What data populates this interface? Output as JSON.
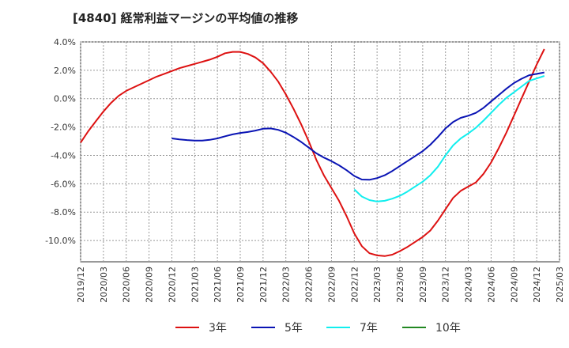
{
  "chart_data": {
    "type": "line",
    "title": "[4840]  経常利益マージンの平均値の推移",
    "xlabel": "",
    "ylabel": "",
    "x_range": [
      "2019/12",
      "2025/03"
    ],
    "ylim": [
      -11.5,
      4.0
    ],
    "y_ticks": [
      4.0,
      2.0,
      0.0,
      -2.0,
      -4.0,
      -6.0,
      -8.0,
      -10.0
    ],
    "y_tick_labels": [
      "4.0%",
      "2.0%",
      "0.0%",
      "-2.0%",
      "-4.0%",
      "-6.0%",
      "-8.0%",
      "-10.0%"
    ],
    "x_tick_labels": [
      "2019/12",
      "2020/03",
      "2020/06",
      "2020/09",
      "2020/12",
      "2021/03",
      "2021/06",
      "2021/09",
      "2021/12",
      "2022/03",
      "2022/06",
      "2022/09",
      "2022/12",
      "2023/03",
      "2023/06",
      "2023/09",
      "2023/12",
      "2024/03",
      "2024/06",
      "2024/09",
      "2024/12",
      "2025/03"
    ],
    "grid": true,
    "legend_position": "bottom",
    "series": [
      {
        "name": "3年",
        "color": "#dd1111",
        "points": [
          [
            "2019/12",
            -3.1
          ],
          [
            "2020/01",
            -2.3
          ],
          [
            "2020/02",
            -1.6
          ],
          [
            "2020/03",
            -0.9
          ],
          [
            "2020/04",
            -0.3
          ],
          [
            "2020/05",
            0.2
          ],
          [
            "2020/06",
            0.55
          ],
          [
            "2020/07",
            0.8
          ],
          [
            "2020/08",
            1.05
          ],
          [
            "2020/09",
            1.3
          ],
          [
            "2020/10",
            1.55
          ],
          [
            "2020/11",
            1.75
          ],
          [
            "2020/12",
            1.95
          ],
          [
            "2021/01",
            2.15
          ],
          [
            "2021/02",
            2.3
          ],
          [
            "2021/03",
            2.45
          ],
          [
            "2021/04",
            2.6
          ],
          [
            "2021/05",
            2.75
          ],
          [
            "2021/06",
            2.95
          ],
          [
            "2021/07",
            3.2
          ],
          [
            "2021/08",
            3.3
          ],
          [
            "2021/09",
            3.3
          ],
          [
            "2021/10",
            3.15
          ],
          [
            "2021/11",
            2.9
          ],
          [
            "2021/12",
            2.5
          ],
          [
            "2022/01",
            1.9
          ],
          [
            "2022/02",
            1.2
          ],
          [
            "2022/03",
            0.3
          ],
          [
            "2022/04",
            -0.7
          ],
          [
            "2022/05",
            -1.8
          ],
          [
            "2022/06",
            -3.0
          ],
          [
            "2022/07",
            -4.3
          ],
          [
            "2022/08",
            -5.4
          ],
          [
            "2022/09",
            -6.3
          ],
          [
            "2022/10",
            -7.2
          ],
          [
            "2022/11",
            -8.3
          ],
          [
            "2022/12",
            -9.5
          ],
          [
            "2023/01",
            -10.4
          ],
          [
            "2023/02",
            -10.9
          ],
          [
            "2023/03",
            -11.05
          ],
          [
            "2023/04",
            -11.1
          ],
          [
            "2023/05",
            -11.0
          ],
          [
            "2023/06",
            -10.75
          ],
          [
            "2023/07",
            -10.45
          ],
          [
            "2023/08",
            -10.1
          ],
          [
            "2023/09",
            -9.75
          ],
          [
            "2023/10",
            -9.3
          ],
          [
            "2023/11",
            -8.6
          ],
          [
            "2023/12",
            -7.8
          ],
          [
            "2024/01",
            -7.0
          ],
          [
            "2024/02",
            -6.5
          ],
          [
            "2024/03",
            -6.2
          ],
          [
            "2024/04",
            -5.9
          ],
          [
            "2024/05",
            -5.3
          ],
          [
            "2024/06",
            -4.5
          ],
          [
            "2024/07",
            -3.5
          ],
          [
            "2024/08",
            -2.4
          ],
          [
            "2024/09",
            -1.2
          ],
          [
            "2024/10",
            0.0
          ],
          [
            "2024/11",
            1.2
          ],
          [
            "2024/12",
            2.4
          ],
          [
            "2025/01",
            3.5
          ]
        ]
      },
      {
        "name": "5年",
        "color": "#0a14b4",
        "points": [
          [
            "2020/12",
            -2.8
          ],
          [
            "2021/01",
            -2.87
          ],
          [
            "2021/02",
            -2.92
          ],
          [
            "2021/03",
            -2.95
          ],
          [
            "2021/04",
            -2.95
          ],
          [
            "2021/05",
            -2.9
          ],
          [
            "2021/06",
            -2.8
          ],
          [
            "2021/07",
            -2.65
          ],
          [
            "2021/08",
            -2.52
          ],
          [
            "2021/09",
            -2.42
          ],
          [
            "2021/10",
            -2.35
          ],
          [
            "2021/11",
            -2.25
          ],
          [
            "2021/12",
            -2.12
          ],
          [
            "2022/01",
            -2.1
          ],
          [
            "2022/02",
            -2.2
          ],
          [
            "2022/03",
            -2.4
          ],
          [
            "2022/04",
            -2.7
          ],
          [
            "2022/05",
            -3.05
          ],
          [
            "2022/06",
            -3.45
          ],
          [
            "2022/07",
            -3.85
          ],
          [
            "2022/08",
            -4.15
          ],
          [
            "2022/09",
            -4.4
          ],
          [
            "2022/10",
            -4.7
          ],
          [
            "2022/11",
            -5.05
          ],
          [
            "2022/12",
            -5.45
          ],
          [
            "2023/01",
            -5.7
          ],
          [
            "2023/02",
            -5.72
          ],
          [
            "2023/03",
            -5.6
          ],
          [
            "2023/04",
            -5.4
          ],
          [
            "2023/05",
            -5.1
          ],
          [
            "2023/06",
            -4.75
          ],
          [
            "2023/07",
            -4.4
          ],
          [
            "2023/08",
            -4.05
          ],
          [
            "2023/09",
            -3.7
          ],
          [
            "2023/10",
            -3.25
          ],
          [
            "2023/11",
            -2.7
          ],
          [
            "2023/12",
            -2.1
          ],
          [
            "2024/01",
            -1.65
          ],
          [
            "2024/02",
            -1.35
          ],
          [
            "2024/03",
            -1.2
          ],
          [
            "2024/04",
            -1.0
          ],
          [
            "2024/05",
            -0.65
          ],
          [
            "2024/06",
            -0.2
          ],
          [
            "2024/07",
            0.25
          ],
          [
            "2024/08",
            0.7
          ],
          [
            "2024/09",
            1.1
          ],
          [
            "2024/10",
            1.4
          ],
          [
            "2024/11",
            1.65
          ],
          [
            "2025/01",
            1.85
          ]
        ]
      },
      {
        "name": "7年",
        "color": "#11eeee",
        "points": [
          [
            "2022/12",
            -6.4
          ],
          [
            "2023/01",
            -6.9
          ],
          [
            "2023/02",
            -7.15
          ],
          [
            "2023/03",
            -7.25
          ],
          [
            "2023/04",
            -7.2
          ],
          [
            "2023/05",
            -7.05
          ],
          [
            "2023/06",
            -6.85
          ],
          [
            "2023/07",
            -6.55
          ],
          [
            "2023/08",
            -6.2
          ],
          [
            "2023/09",
            -5.85
          ],
          [
            "2023/10",
            -5.4
          ],
          [
            "2023/11",
            -4.8
          ],
          [
            "2023/12",
            -4.0
          ],
          [
            "2024/01",
            -3.3
          ],
          [
            "2024/02",
            -2.8
          ],
          [
            "2024/03",
            -2.45
          ],
          [
            "2024/04",
            -2.05
          ],
          [
            "2024/05",
            -1.55
          ],
          [
            "2024/06",
            -1.0
          ],
          [
            "2024/07",
            -0.45
          ],
          [
            "2024/08",
            0.05
          ],
          [
            "2024/09",
            0.45
          ],
          [
            "2024/10",
            0.85
          ],
          [
            "2024/11",
            1.25
          ],
          [
            "2025/01",
            1.6
          ]
        ]
      },
      {
        "name": "10年",
        "color": "#228822",
        "points": []
      }
    ]
  }
}
